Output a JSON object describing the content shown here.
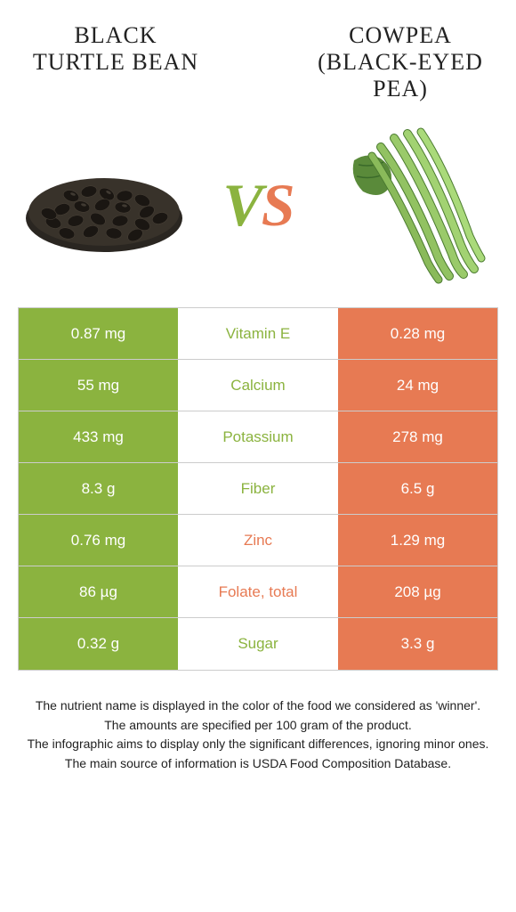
{
  "colors": {
    "left_bg": "#8bb33f",
    "right_bg": "#e77a53",
    "mid_bg": "#ffffff",
    "cell_text": "#ffffff",
    "border": "#cccccc",
    "footer_text": "#222222"
  },
  "header": {
    "left_title": "BLACK TURTLE BEAN",
    "right_title": "COWPEA (BLACK-EYED PEA)"
  },
  "vs": {
    "v": "V",
    "s": "S"
  },
  "rows": [
    {
      "left": "0.87 mg",
      "mid": "Vitamin E",
      "right": "0.28 mg",
      "winner": "left"
    },
    {
      "left": "55 mg",
      "mid": "Calcium",
      "right": "24 mg",
      "winner": "left"
    },
    {
      "left": "433 mg",
      "mid": "Potassium",
      "right": "278 mg",
      "winner": "left"
    },
    {
      "left": "8.3 g",
      "mid": "Fiber",
      "right": "6.5 g",
      "winner": "left"
    },
    {
      "left": "0.76 mg",
      "mid": "Zinc",
      "right": "1.29 mg",
      "winner": "right"
    },
    {
      "left": "86 µg",
      "mid": "Folate, total",
      "right": "208 µg",
      "winner": "right"
    },
    {
      "left": "0.32 g",
      "mid": "Sugar",
      "right": "3.3 g",
      "winner": "left"
    }
  ],
  "footer": {
    "line1": "The nutrient name is displayed in the color of the food we considered as 'winner'.",
    "line2": "The amounts are specified per 100 gram of the product.",
    "line3": "The infographic aims to display only the significant differences, ignoring minor ones.",
    "line4": "The main source of information is USDA Food Composition Database."
  }
}
